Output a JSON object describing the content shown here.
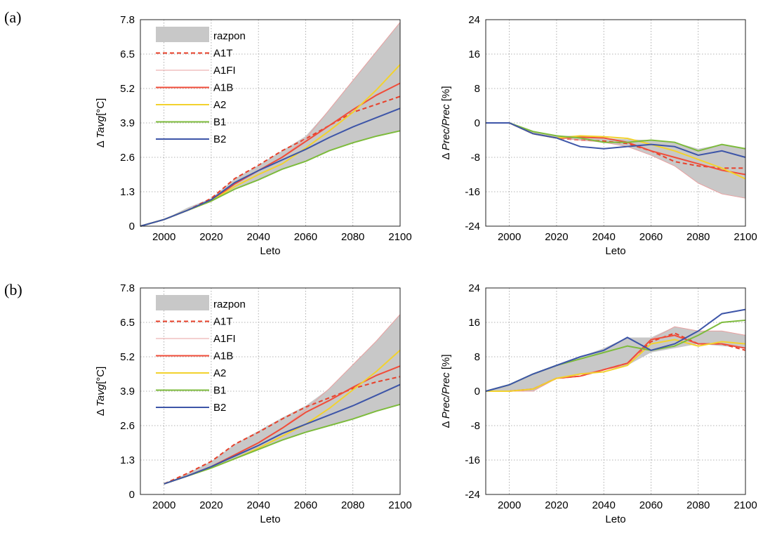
{
  "panel_labels": [
    "(a)",
    "(b)"
  ],
  "colors": {
    "razpon": "#c8c8c8",
    "A1T": "#e8402a",
    "A1FI": "#e8a0a0",
    "A1B": "#f04d3a",
    "A2": "#f2d22e",
    "B1": "#7dbb3c",
    "B2": "#3d55a8"
  },
  "chart_data": [
    {
      "type": "line",
      "panel": "(a)",
      "xlabel": "Leto",
      "ylabel": "Δ Tavg[°C]",
      "xlim": [
        1990,
        2100
      ],
      "ylim": [
        0,
        7.8
      ],
      "xticks": [
        2000,
        2020,
        2040,
        2060,
        2080,
        2100
      ],
      "yticks": [
        "0",
        "1.3",
        "2.6",
        "3.9",
        "5.2",
        "6.5",
        "7.8"
      ],
      "grid": true,
      "legend_position": "top-left",
      "legend": [
        "razpon",
        "A1T",
        "A1FI",
        "A1B",
        "A2",
        "B1",
        "B2"
      ],
      "x": [
        1990,
        2000,
        2010,
        2020,
        2030,
        2040,
        2050,
        2060,
        2070,
        2080,
        2090,
        2100
      ],
      "band": {
        "name": "razpon",
        "lower": [
          0,
          0.25,
          0.6,
          0.95,
          1.4,
          1.75,
          2.15,
          2.45,
          2.85,
          3.15,
          3.4,
          3.6
        ],
        "upper": [
          0,
          0.25,
          0.7,
          1.05,
          1.8,
          2.3,
          2.85,
          3.4,
          4.4,
          5.5,
          6.6,
          7.7
        ]
      },
      "series": [
        {
          "name": "A1T",
          "dash": true,
          "values": [
            0,
            0.25,
            0.6,
            1.05,
            1.8,
            2.3,
            2.85,
            3.3,
            3.8,
            4.3,
            4.6,
            4.9
          ]
        },
        {
          "name": "A1FI",
          "values": [
            0,
            0.25,
            0.6,
            1.0,
            1.6,
            2.1,
            2.6,
            3.3,
            4.4,
            5.5,
            6.6,
            7.7
          ]
        },
        {
          "name": "A1B",
          "values": [
            0,
            0.25,
            0.6,
            0.95,
            1.6,
            2.1,
            2.6,
            3.2,
            3.8,
            4.4,
            4.95,
            5.4
          ]
        },
        {
          "name": "A2",
          "values": [
            0,
            0.25,
            0.6,
            0.95,
            1.5,
            1.95,
            2.35,
            2.95,
            3.6,
            4.3,
            5.15,
            6.1
          ]
        },
        {
          "name": "B1",
          "values": [
            0,
            0.25,
            0.6,
            0.95,
            1.4,
            1.75,
            2.15,
            2.45,
            2.85,
            3.15,
            3.4,
            3.6
          ]
        },
        {
          "name": "B2",
          "values": [
            0,
            0.25,
            0.6,
            1.0,
            1.65,
            2.1,
            2.5,
            2.9,
            3.35,
            3.75,
            4.1,
            4.45
          ]
        }
      ]
    },
    {
      "type": "line",
      "panel": "(a)",
      "xlabel": "Leto",
      "ylabel": "Δ Prec/Prec [%]",
      "xlim": [
        1990,
        2100
      ],
      "ylim": [
        -24,
        24
      ],
      "xticks": [
        2000,
        2020,
        2040,
        2060,
        2080,
        2100
      ],
      "yticks": [
        "-24",
        "-16",
        "-8",
        "0",
        "8",
        "16",
        "24"
      ],
      "grid": true,
      "x": [
        1990,
        2000,
        2010,
        2020,
        2030,
        2040,
        2050,
        2060,
        2070,
        2080,
        2090,
        2100
      ],
      "band": {
        "name": "razpon",
        "lower": [
          0,
          0,
          -2.5,
          -3.5,
          -4,
          -4.5,
          -5.5,
          -7.5,
          -10,
          -14,
          -16.5,
          -17.5
        ],
        "upper": [
          0,
          0,
          -2,
          -3,
          -3,
          -3.5,
          -3.8,
          -4,
          -4.5,
          -6,
          -5,
          -6
        ]
      },
      "series": [
        {
          "name": "A1T",
          "dash": true,
          "values": [
            0,
            0,
            -2.5,
            -3.5,
            -4,
            -4.2,
            -4.8,
            -6.5,
            -9,
            -10,
            -10.5,
            -10.5
          ]
        },
        {
          "name": "A1FI",
          "values": [
            0,
            0,
            -2.5,
            -3.5,
            -4,
            -4.5,
            -5.5,
            -7.5,
            -10,
            -14,
            -16.5,
            -17.5
          ]
        },
        {
          "name": "A1B",
          "values": [
            0,
            0,
            -2.5,
            -3.5,
            -3.3,
            -3.5,
            -4.5,
            -6.5,
            -8,
            -9.5,
            -11,
            -12
          ]
        },
        {
          "name": "A2",
          "values": [
            0,
            0,
            -2.5,
            -3.5,
            -3.0,
            -3.2,
            -3.6,
            -5,
            -6.5,
            -8.5,
            -10.5,
            -13
          ]
        },
        {
          "name": "B1",
          "values": [
            0,
            0,
            -2.0,
            -3.0,
            -3.5,
            -4.5,
            -4.5,
            -4.0,
            -4.5,
            -6.5,
            -5.0,
            -6.0
          ]
        },
        {
          "name": "B2",
          "values": [
            0,
            0,
            -2.5,
            -3.5,
            -5.5,
            -6.0,
            -5.5,
            -5.0,
            -5.5,
            -7.5,
            -6.5,
            -8.0
          ]
        }
      ]
    },
    {
      "type": "line",
      "panel": "(b)",
      "xlabel": "Leto",
      "ylabel": "Δ Tavg[°C]",
      "xlim": [
        1990,
        2100
      ],
      "ylim": [
        0,
        7.8
      ],
      "xticks": [
        2000,
        2020,
        2040,
        2060,
        2080,
        2100
      ],
      "yticks": [
        "0",
        "1.3",
        "2.6",
        "3.9",
        "5.2",
        "6.5",
        "7.8"
      ],
      "grid": true,
      "legend_position": "top-left",
      "legend": [
        "razpon",
        "A1T",
        "A1FI",
        "A1B",
        "A2",
        "B1",
        "B2"
      ],
      "x": [
        2000,
        2010,
        2020,
        2030,
        2040,
        2050,
        2060,
        2070,
        2080,
        2090,
        2100
      ],
      "band": {
        "name": "razpon",
        "lower": [
          0.4,
          0.7,
          1.0,
          1.35,
          1.7,
          2.05,
          2.35,
          2.6,
          2.85,
          3.15,
          3.4
        ],
        "upper": [
          0.4,
          0.8,
          1.25,
          1.9,
          2.4,
          2.9,
          3.35,
          4.0,
          4.9,
          5.8,
          6.8
        ]
      },
      "series": [
        {
          "name": "A1T",
          "dash": true,
          "values": [
            0.4,
            0.8,
            1.25,
            1.9,
            2.35,
            2.85,
            3.3,
            3.65,
            4.0,
            4.25,
            4.45
          ]
        },
        {
          "name": "A1FI",
          "values": [
            0.4,
            0.7,
            1.05,
            1.5,
            1.95,
            2.5,
            3.2,
            4.0,
            4.9,
            5.8,
            6.8
          ]
        },
        {
          "name": "A1B",
          "values": [
            0.4,
            0.7,
            1.05,
            1.5,
            1.95,
            2.5,
            3.1,
            3.55,
            4.05,
            4.5,
            4.85
          ]
        },
        {
          "name": "A2",
          "values": [
            0.4,
            0.7,
            1.0,
            1.35,
            1.75,
            2.2,
            2.65,
            3.25,
            3.95,
            4.65,
            5.45
          ]
        },
        {
          "name": "B1",
          "values": [
            0.4,
            0.7,
            1.0,
            1.35,
            1.7,
            2.05,
            2.35,
            2.6,
            2.85,
            3.15,
            3.4
          ]
        },
        {
          "name": "B2",
          "values": [
            0.4,
            0.7,
            1.05,
            1.45,
            1.85,
            2.3,
            2.65,
            3.0,
            3.35,
            3.75,
            4.15
          ]
        }
      ]
    },
    {
      "type": "line",
      "panel": "(b)",
      "xlabel": "Leto",
      "ylabel": "Δ Prec/Prec [%]",
      "xlim": [
        1990,
        2100
      ],
      "ylim": [
        -24,
        24
      ],
      "xticks": [
        2000,
        2020,
        2040,
        2060,
        2080,
        2100
      ],
      "yticks": [
        "-24",
        "-16",
        "-8",
        "0",
        "8",
        "16",
        "24"
      ],
      "grid": true,
      "x": [
        1990,
        2000,
        2010,
        2020,
        2030,
        2040,
        2050,
        2060,
        2070,
        2080,
        2090,
        2100
      ],
      "band": {
        "name": "razpon",
        "lower": [
          0,
          0,
          0,
          3,
          4,
          5,
          6,
          9,
          10,
          11,
          10.5,
          10
        ],
        "upper": [
          0,
          1.5,
          4,
          6,
          8,
          10,
          12.5,
          12.5,
          15,
          14,
          14,
          13
        ]
      },
      "series": [
        {
          "name": "A1T",
          "dash": true,
          "values": [
            0,
            0,
            0.5,
            3,
            3.5,
            5,
            6.5,
            11.5,
            13.5,
            11,
            11,
            9.5
          ]
        },
        {
          "name": "A1FI",
          "values": [
            0,
            0,
            0,
            3,
            4,
            5,
            6,
            12,
            15,
            14,
            14,
            13
          ]
        },
        {
          "name": "A1B",
          "values": [
            0,
            0,
            0.5,
            3,
            3.5,
            5,
            6.5,
            12,
            13,
            11,
            11,
            10
          ]
        },
        {
          "name": "A2",
          "values": [
            0,
            0,
            0.5,
            3,
            4,
            4.5,
            6,
            11,
            12,
            10.5,
            11.5,
            11
          ]
        },
        {
          "name": "B1",
          "values": [
            0,
            1.5,
            4,
            6,
            7.5,
            9,
            10.5,
            9.5,
            10.5,
            13,
            16,
            16.5
          ]
        },
        {
          "name": "B2",
          "values": [
            0,
            1.5,
            4,
            6,
            8,
            9.5,
            12.5,
            9.5,
            11,
            14,
            18,
            19
          ]
        }
      ]
    }
  ]
}
